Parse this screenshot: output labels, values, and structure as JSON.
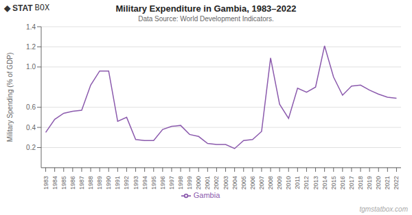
{
  "chart_data": {
    "type": "line",
    "title": "Military Expenditure in Gambia, 1983–2022",
    "subtitle": "Data Source: World Development Indicators.",
    "ylabel": "Military Spending (% of GDP)",
    "annotations": [
      "◆",
      "STAT",
      "BOX",
      "tgmstatbox.com"
    ],
    "x": [
      1983,
      1984,
      1985,
      1986,
      1987,
      1988,
      1989,
      1990,
      1991,
      1992,
      1993,
      1994,
      1995,
      1996,
      1997,
      1998,
      1999,
      2000,
      2001,
      2002,
      2003,
      2004,
      2005,
      2006,
      2007,
      2008,
      2009,
      2010,
      2011,
      2012,
      2013,
      2014,
      2015,
      2016,
      2017,
      2018,
      2019,
      2020,
      2021,
      2022
    ],
    "series": [
      {
        "name": "Gambia",
        "color": "#8b5aad",
        "values": [
          0.35,
          0.48,
          0.54,
          0.56,
          0.57,
          0.82,
          0.96,
          0.96,
          0.46,
          0.5,
          0.28,
          0.27,
          0.27,
          0.38,
          0.41,
          0.42,
          0.33,
          0.31,
          0.24,
          0.23,
          0.23,
          0.19,
          0.27,
          0.28,
          0.36,
          1.09,
          0.63,
          0.49,
          0.79,
          0.75,
          0.8,
          1.21,
          0.9,
          0.72,
          0.81,
          0.82,
          0.77,
          0.73,
          0.7,
          0.69
        ]
      }
    ],
    "xlim": [
      1982.5,
      2022.5
    ],
    "xticks": [
      1983,
      1984,
      1985,
      1986,
      1987,
      1988,
      1989,
      1990,
      1991,
      1992,
      1993,
      1994,
      1995,
      1996,
      1997,
      1998,
      1999,
      2000,
      2001,
      2002,
      2003,
      2004,
      2005,
      2006,
      2007,
      2008,
      2009,
      2010,
      2011,
      2012,
      2013,
      2014,
      2015,
      2016,
      2017,
      2018,
      2019,
      2020,
      2021,
      2022
    ],
    "ylim": [
      0,
      1.4
    ],
    "yticks": [
      0.2,
      0.4,
      0.6,
      {
        "value": 1,
        "label": "1.0"
      },
      1.2,
      1.4
    ],
    "grid": true,
    "legend": "bottom"
  }
}
